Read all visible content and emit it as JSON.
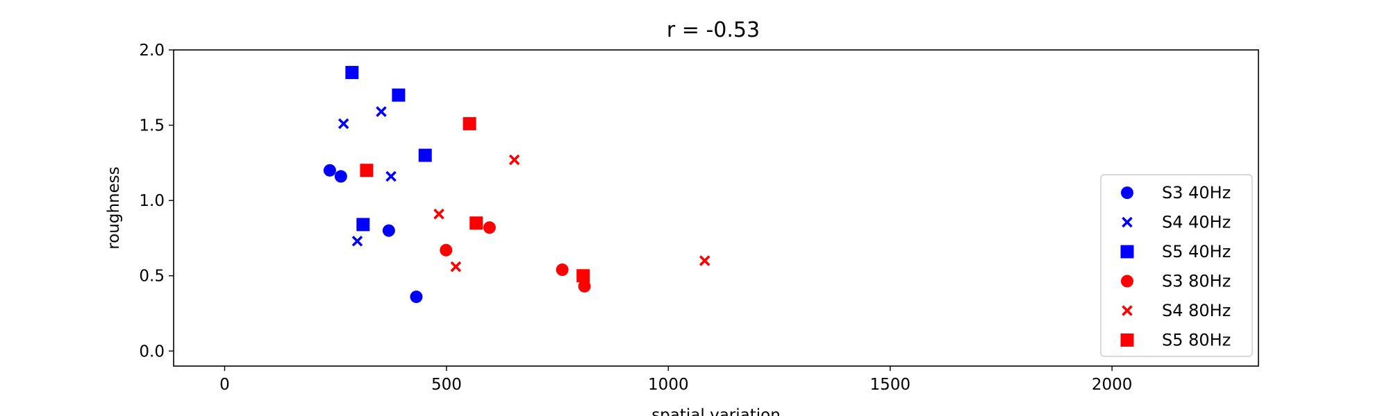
{
  "chart_data": {
    "type": "scatter",
    "title": "r = -0.53",
    "xlabel": "spatial variation",
    "ylabel": "roughness",
    "xlim": [
      -115,
      2330
    ],
    "ylim": [
      -0.1,
      2.0
    ],
    "xticks": [
      0,
      500,
      1000,
      1500,
      2000
    ],
    "yticks": [
      0.0,
      0.5,
      1.0,
      1.5,
      2.0
    ],
    "xtick_labels": [
      "0",
      "500",
      "1000",
      "1500",
      "2000"
    ],
    "ytick_labels": [
      "0.0",
      "0.5",
      "1.0",
      "1.5",
      "2.0"
    ],
    "grid": false,
    "legend_position": "right",
    "series": [
      {
        "name": "S3 40Hz",
        "marker": "circle",
        "color": "#0000ff",
        "points": [
          [
            237,
            1.2
          ],
          [
            262,
            1.16
          ],
          [
            370,
            0.8
          ],
          [
            432,
            0.36
          ]
        ]
      },
      {
        "name": "S4 40Hz",
        "marker": "x",
        "color": "#0000ff",
        "points": [
          [
            268,
            1.51
          ],
          [
            353,
            1.59
          ],
          [
            375,
            1.16
          ],
          [
            299,
            0.73
          ]
        ]
      },
      {
        "name": "S5 40Hz",
        "marker": "square",
        "color": "#0000ff",
        "points": [
          [
            287,
            1.85
          ],
          [
            392,
            1.7
          ],
          [
            452,
            1.3
          ],
          [
            312,
            0.84
          ]
        ]
      },
      {
        "name": "S3 80Hz",
        "marker": "circle",
        "color": "#ff0000",
        "points": [
          [
            499,
            0.67
          ],
          [
            597,
            0.82
          ],
          [
            761,
            0.54
          ],
          [
            811,
            0.43
          ]
        ]
      },
      {
        "name": "S4 80Hz",
        "marker": "x",
        "color": "#ff0000",
        "points": [
          [
            483,
            0.91
          ],
          [
            521,
            0.56
          ],
          [
            653,
            1.27
          ],
          [
            1082,
            0.6
          ]
        ]
      },
      {
        "name": "S5 80Hz",
        "marker": "square",
        "color": "#ff0000",
        "points": [
          [
            320,
            1.2
          ],
          [
            552,
            1.51
          ],
          [
            567,
            0.85
          ],
          [
            808,
            0.5
          ]
        ]
      }
    ]
  }
}
